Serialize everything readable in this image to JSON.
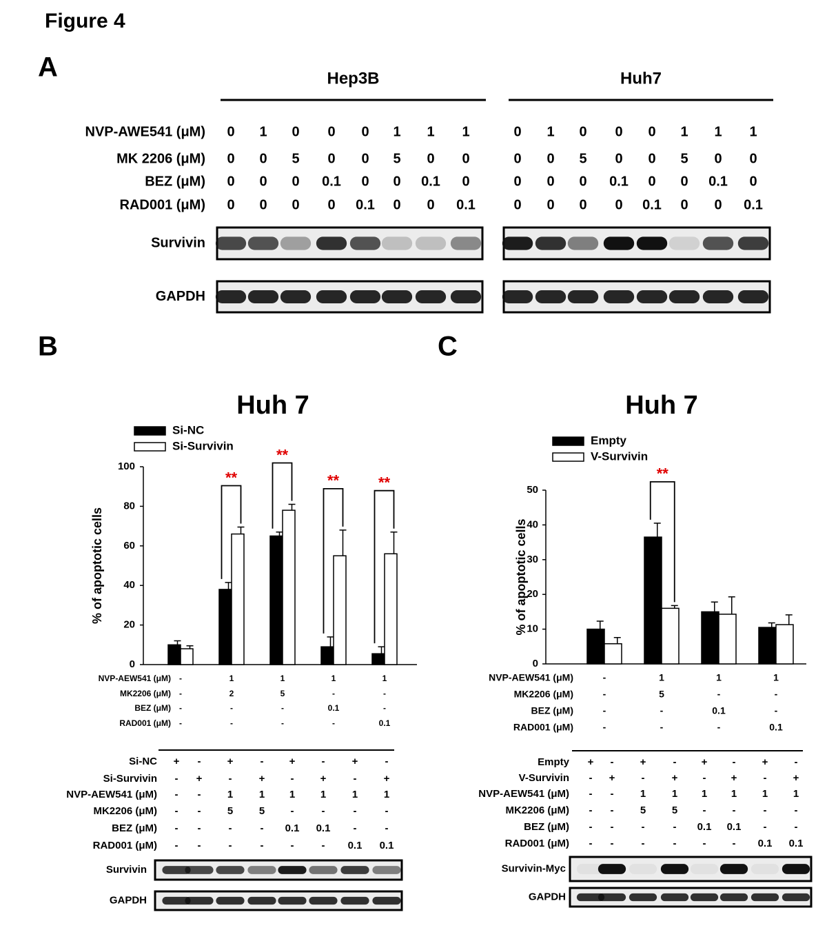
{
  "title": "Figure 4",
  "panel_a": {
    "label": "A",
    "row_labels": [
      "NVP-AWE541 (μM)",
      "MK 2206 (μM)",
      "BEZ (μM)",
      "RAD001 (μM)"
    ],
    "groups": [
      {
        "name": "Hep3B",
        "rows": [
          [
            0,
            1,
            0,
            0,
            0,
            1,
            1,
            1
          ],
          [
            0,
            0,
            5,
            0,
            0,
            5,
            0,
            0
          ],
          [
            0,
            0,
            0,
            0.1,
            0,
            0,
            0.1,
            0
          ],
          [
            0,
            0,
            0,
            0,
            0.1,
            0,
            0,
            0.1
          ]
        ]
      },
      {
        "name": "Huh7",
        "rows": [
          [
            0,
            1,
            0,
            0,
            0,
            1,
            1,
            1
          ],
          [
            0,
            0,
            5,
            0,
            0,
            5,
            0,
            0
          ],
          [
            0,
            0,
            0,
            0.1,
            0,
            0,
            0.1,
            0
          ],
          [
            0,
            0,
            0,
            0,
            0.1,
            0,
            0,
            0.1
          ]
        ]
      }
    ],
    "blot_labels": [
      "Survivin",
      "GAPDH"
    ]
  },
  "chart_data": [
    {
      "type": "bar",
      "panel_label": "B",
      "title": "Huh 7",
      "y_label": "% of apoptotic cells",
      "categories": [
        null,
        null,
        null,
        null,
        null
      ],
      "series": [
        {
          "name": "Si-NC",
          "color": "#000000",
          "values": [
            10,
            38,
            65,
            9,
            5.5
          ],
          "errors": [
            2,
            3.5,
            2,
            5,
            3.5
          ]
        },
        {
          "name": "Si-Survivin",
          "color": "#ffffff",
          "values": [
            8,
            66,
            78,
            55,
            56
          ],
          "errors": [
            1.5,
            3.5,
            3,
            13,
            11
          ]
        }
      ],
      "significance": [
        null,
        "**",
        "**",
        "**",
        "**"
      ],
      "ylim": [
        0,
        100
      ],
      "yticks": [
        0,
        20,
        40,
        60,
        80,
        100
      ],
      "treatments": {
        "labels": [
          "NVP-AEW541 (μM)",
          "MK2206 (μM)",
          "BEZ (μM)",
          "RAD001 (μM)"
        ],
        "rows": [
          [
            "-",
            1,
            1,
            1,
            1
          ],
          [
            "-",
            2,
            5,
            "-",
            "-"
          ],
          [
            "-",
            "-",
            "-",
            0.1,
            "-"
          ],
          [
            "-",
            "-",
            "-",
            "-",
            0.1
          ]
        ]
      }
    },
    {
      "type": "bar",
      "panel_label": "C",
      "title": "Huh 7",
      "y_label": "% of apoptotic cells",
      "categories": [
        null,
        null,
        null,
        null
      ],
      "series": [
        {
          "name": "Empty",
          "color": "#000000",
          "values": [
            10,
            36.5,
            15,
            10.5
          ],
          "errors": [
            2.3,
            4,
            2.8,
            1.3
          ]
        },
        {
          "name": "V-Survivin",
          "color": "#ffffff",
          "values": [
            5.8,
            16,
            14.3,
            11.3
          ],
          "errors": [
            1.8,
            0.8,
            5,
            2.8
          ]
        }
      ],
      "significance": [
        null,
        "**",
        null,
        null
      ],
      "ylim": [
        0,
        50
      ],
      "yticks": [
        0,
        10,
        20,
        30,
        40,
        50
      ],
      "treatments": {
        "labels": [
          "NVP-AEW541 (μM)",
          "MK2206 (μM)",
          "BEZ (μM)",
          "RAD001 (μM)"
        ],
        "rows": [
          [
            "-",
            1,
            1,
            1
          ],
          [
            "-",
            5,
            "-",
            "-"
          ],
          [
            "-",
            "-",
            0.1,
            "-"
          ],
          [
            "-",
            "-",
            "-",
            0.1
          ]
        ]
      }
    }
  ],
  "panel_b_blot": {
    "row_labels": [
      "Si-NC",
      "Si-Survivin",
      "NVP-AEW541 (μM)",
      "MK2206 (μM)",
      "BEZ (μM)",
      "RAD001 (μM)"
    ],
    "rows": [
      [
        "+",
        "-",
        "+",
        "-",
        "+",
        "-",
        "+",
        "-"
      ],
      [
        "-",
        "+",
        "-",
        "+",
        "-",
        "+",
        "-",
        "+"
      ],
      [
        "-",
        "-",
        1,
        1,
        1,
        1,
        1,
        1
      ],
      [
        "-",
        "-",
        5,
        5,
        "-",
        "-",
        "-",
        "-"
      ],
      [
        "-",
        "-",
        "-",
        "-",
        0.1,
        0.1,
        "-",
        "-"
      ],
      [
        "-",
        "-",
        "-",
        "-",
        "-",
        "-",
        0.1,
        0.1
      ]
    ],
    "blot_labels": [
      "Survivin",
      "GAPDH"
    ]
  },
  "panel_c_blot": {
    "row_labels": [
      "Empty",
      "V-Survivin",
      "NVP-AEW541 (μM)",
      "MK2206 (μM)",
      "BEZ (μM)",
      "RAD001 (μM)"
    ],
    "rows": [
      [
        "+",
        "-",
        "+",
        "-",
        "+",
        "-",
        "+",
        "-"
      ],
      [
        "-",
        "+",
        "-",
        "+",
        "-",
        "+",
        "-",
        "+"
      ],
      [
        "-",
        "-",
        1,
        1,
        1,
        1,
        1,
        1
      ],
      [
        "-",
        "-",
        5,
        5,
        "-",
        "-",
        "-",
        "-"
      ],
      [
        "-",
        "-",
        "-",
        "-",
        0.1,
        0.1,
        "-",
        "-"
      ],
      [
        "-",
        "-",
        "-",
        "-",
        "-",
        "-",
        0.1,
        0.1
      ]
    ],
    "blot_labels": [
      "Survivin-Myc",
      "GAPDH"
    ]
  }
}
